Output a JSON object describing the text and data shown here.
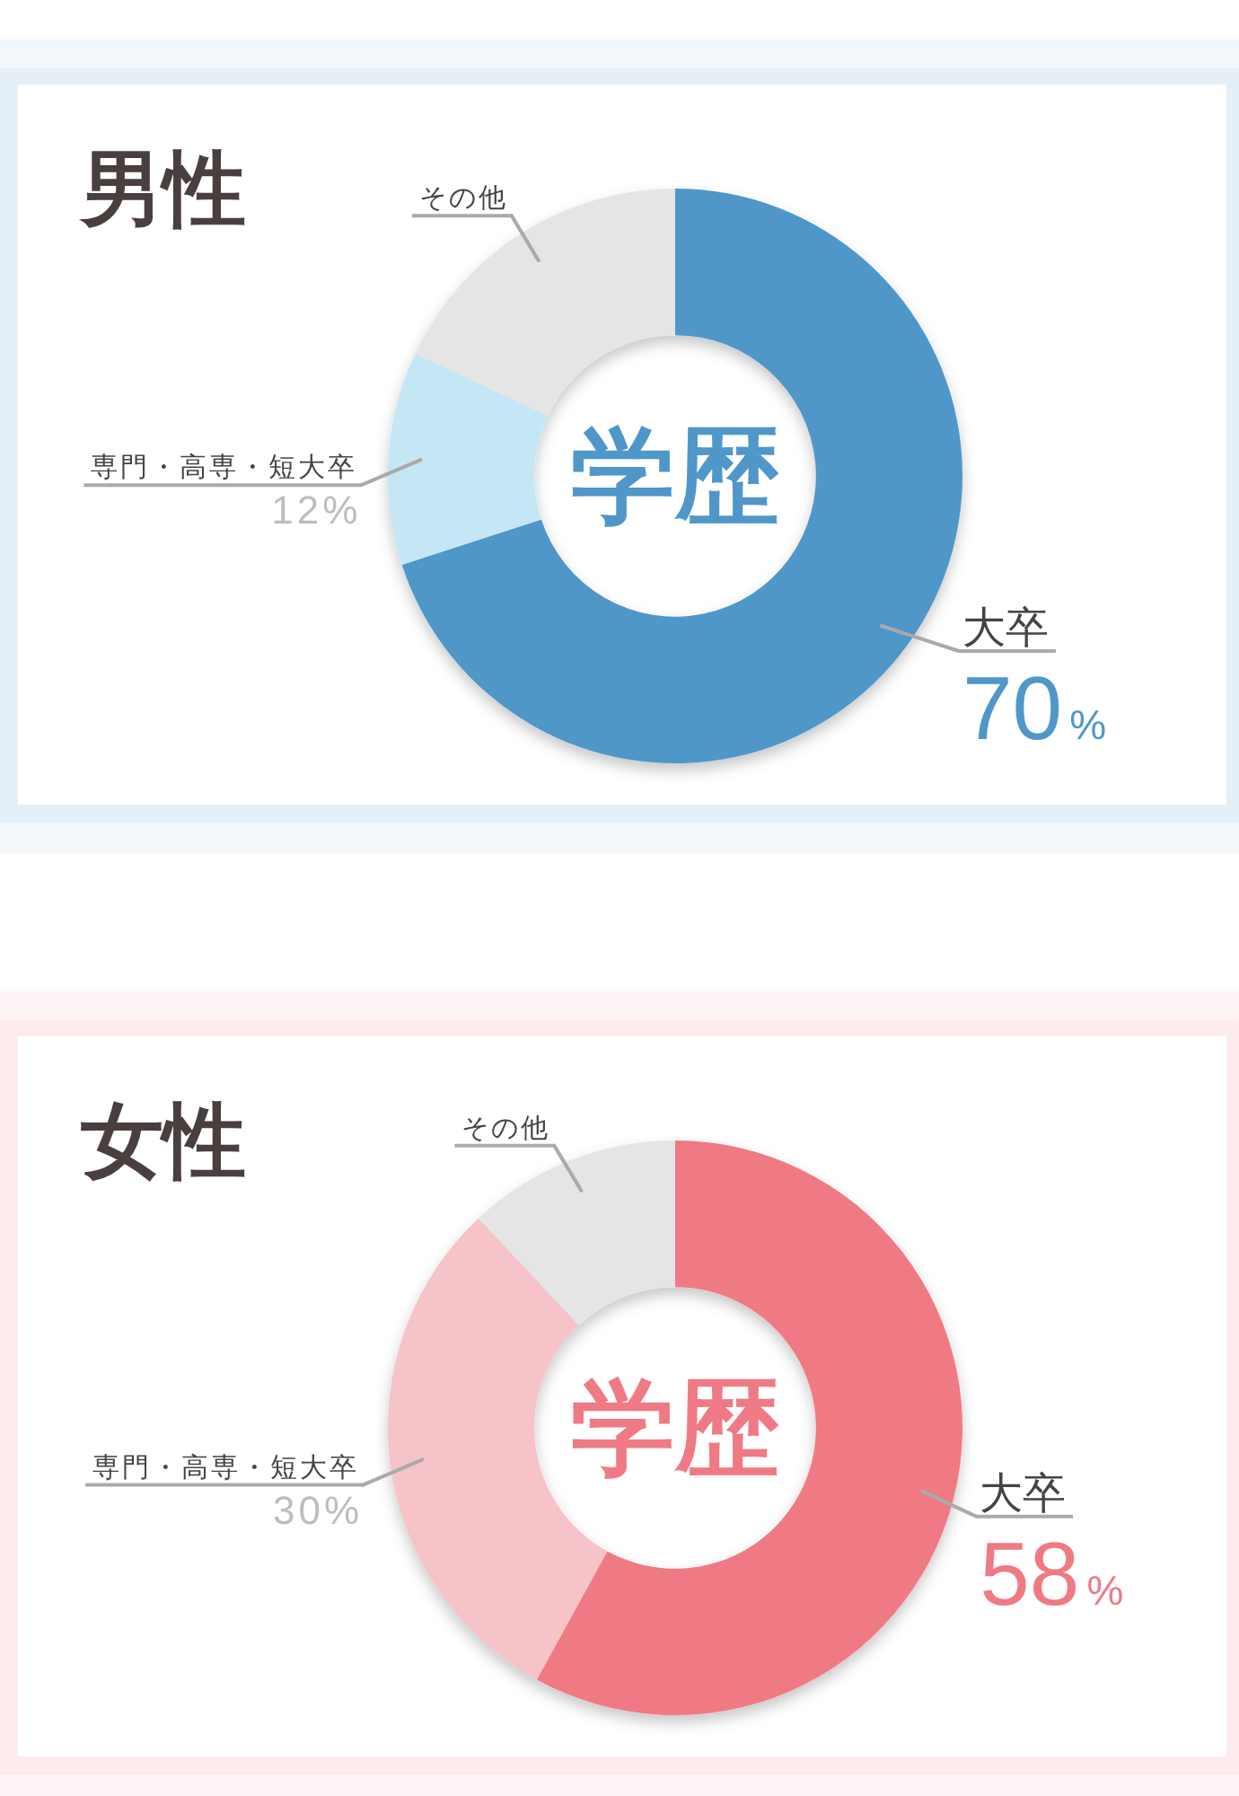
{
  "chart_data": [
    {
      "type": "donut",
      "title": "男性",
      "categories": [
        "大卒",
        "専門・高専・短大卒",
        "その他"
      ],
      "values": [
        70,
        12,
        18
      ],
      "colors": [
        "#5097c9",
        "#c5e6f5",
        "#e5e5e5"
      ],
      "value_labels": [
        "70%",
        "12%",
        null
      ],
      "annotations": [
        "学歴"
      ]
    },
    {
      "type": "donut",
      "title": "女性",
      "categories": [
        "大卒",
        "専門・高専・短大卒",
        "その他"
      ],
      "values": [
        58,
        30,
        12
      ],
      "colors": [
        "#f07a84",
        "#f5c3c8",
        "#e5e5e5"
      ],
      "value_labels": [
        "58%",
        "30%",
        null
      ],
      "annotations": [
        "学歴"
      ]
    }
  ]
}
